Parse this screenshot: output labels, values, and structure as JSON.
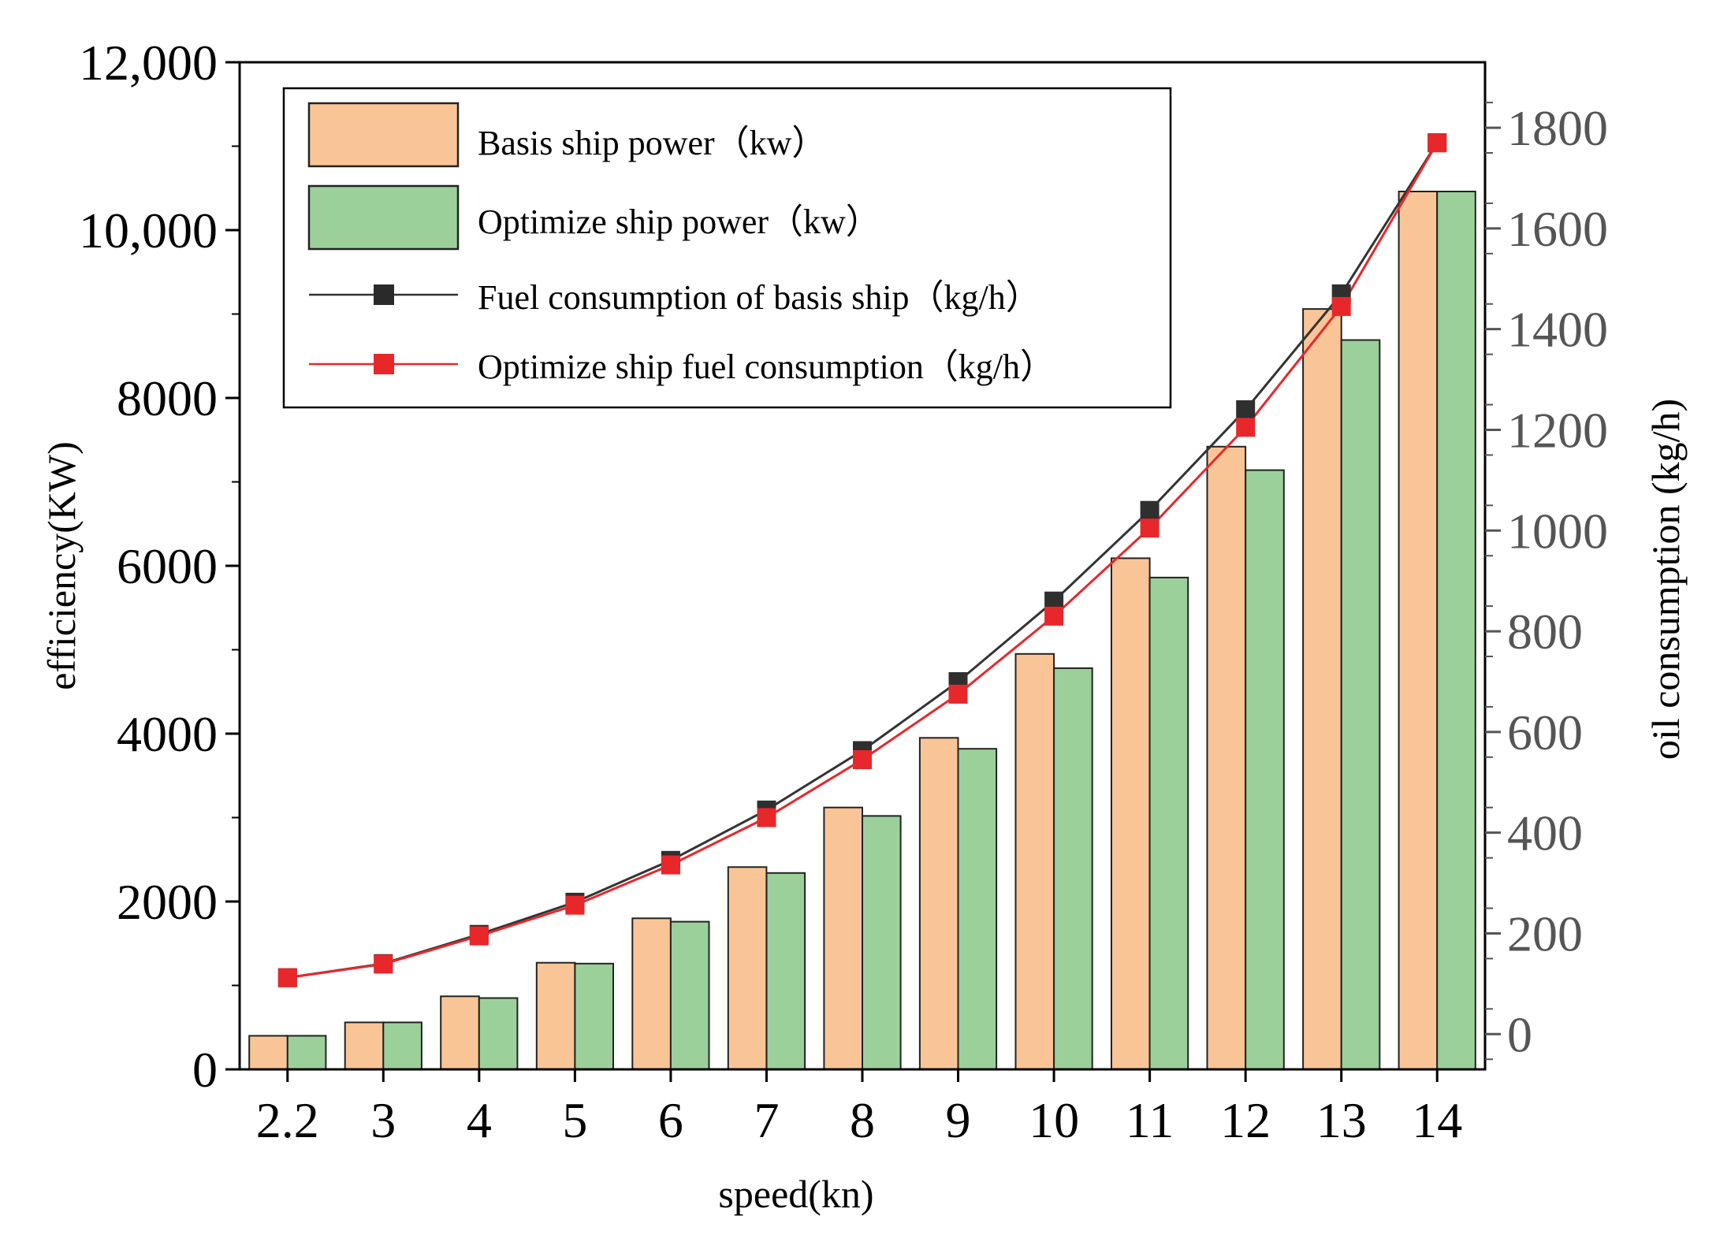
{
  "chart_data": {
    "type": "bar",
    "title": "",
    "xlabel": "speed(kn)",
    "ylabel": "efficiency(KW)",
    "y2label": "oil consumption (kg/h)",
    "categories": [
      "2.2",
      "3",
      "4",
      "5",
      "6",
      "7",
      "8",
      "9",
      "10",
      "11",
      "12",
      "13",
      "14"
    ],
    "ylim": [
      0,
      12000
    ],
    "y2lim": [
      -70,
      1930
    ],
    "y_ticks": [
      "0",
      "2000",
      "4000",
      "6000",
      "8000",
      "10,000",
      "12,000"
    ],
    "y2_ticks": [
      "0",
      "200",
      "400",
      "600",
      "800",
      "1000",
      "1200",
      "1400",
      "1600",
      "1800"
    ],
    "series": [
      {
        "name": "Basis ship power（kw）",
        "kind": "bar",
        "axis": "left",
        "color": "#f9c596",
        "values": [
          400,
          560,
          870,
          1270,
          1800,
          2410,
          3120,
          3950,
          4950,
          6090,
          7420,
          9060,
          10460
        ]
      },
      {
        "name": "Optimize ship power（kw）",
        "kind": "bar",
        "axis": "left",
        "color": "#9bd09a",
        "values": [
          400,
          560,
          850,
          1260,
          1760,
          2340,
          3020,
          3820,
          4780,
          5860,
          7140,
          8690,
          10460
        ]
      },
      {
        "name": "Fuel consumption of basis ship（kg/h）",
        "kind": "line",
        "axis": "right",
        "color": "#333333",
        "values": [
          112,
          140,
          198,
          262,
          345,
          445,
          563,
          700,
          860,
          1040,
          1240,
          1470,
          1770
        ]
      },
      {
        "name": "Optimize ship fuel consumption（kg/h）",
        "kind": "line",
        "axis": "right",
        "color": "#e8272b",
        "values": [
          112,
          139,
          195,
          256,
          336,
          430,
          545,
          675,
          830,
          1005,
          1205,
          1445,
          1770
        ]
      }
    ],
    "legend_position": "top-left"
  }
}
